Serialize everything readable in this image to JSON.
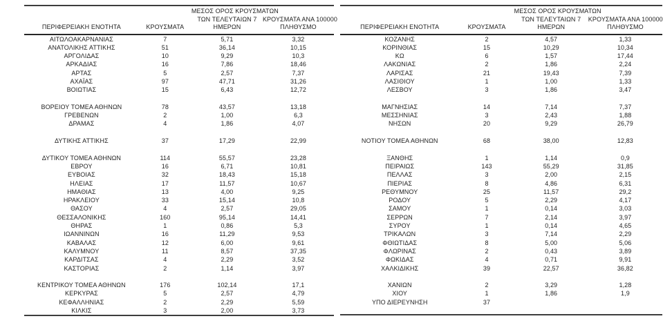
{
  "page": {
    "background_color": "#ffffff",
    "text_color": "#1f1f1f",
    "border_color": "#3d3d3d"
  },
  "headers": {
    "region": "ΠΕΡΙΦΕΡΕΙΑΚΗ ΕΝΟΤΗΤΑ",
    "cases": "ΚΡΟΥΣΜΑΤΑ",
    "avg7_line1": "ΜΕΣΟΣ ΟΡΟΣ ΚΡΟΥΣΜΑΤΩΝ",
    "avg7_line2": "ΤΩΝ ΤΕΛΕΥΤΑΙΩΝ 7",
    "avg7_line3": "ΗΜΕΡΩΝ",
    "per100k_line1": "ΚΡΟΥΣΜΑΤΑ ΑΝΑ 100000",
    "per100k_line2": "ΠΛΗΘΥΣΜΟ"
  },
  "left_table": {
    "rows": [
      {
        "region": "ΑΙΤΩΛΟΑΚΑΡΝΑΝΙΑΣ",
        "cases": "7",
        "avg7": "5,71",
        "per100k": "3,32"
      },
      {
        "region": "ΑΝΑΤΟΛΙΚΗΣ ΑΤΤΙΚΗΣ",
        "cases": "51",
        "avg7": "36,14",
        "per100k": "10,15"
      },
      {
        "region": "ΑΡΓΟΛΙΔΑΣ",
        "cases": "10",
        "avg7": "9,29",
        "per100k": "10,3"
      },
      {
        "region": "ΑΡΚΑΔΙΑΣ",
        "cases": "16",
        "avg7": "7,86",
        "per100k": "18,46"
      },
      {
        "region": "ΑΡΤΑΣ",
        "cases": "5",
        "avg7": "2,57",
        "per100k": "7,37"
      },
      {
        "region": "ΑΧΑΪΑΣ",
        "cases": "97",
        "avg7": "47,71",
        "per100k": "31,26"
      },
      {
        "region": "ΒΟΙΩΤΙΑΣ",
        "cases": "15",
        "avg7": "6,43",
        "per100k": "12,72"
      },
      {
        "region": "",
        "cases": "",
        "avg7": "",
        "per100k": ""
      },
      {
        "region": "ΒΟΡΕΙΟΥ ΤΟΜΕΑ ΑΘΗΝΩΝ",
        "cases": "78",
        "avg7": "43,57",
        "per100k": "13,18"
      },
      {
        "region": "ΓΡΕΒΕΝΩΝ",
        "cases": "2",
        "avg7": "1,00",
        "per100k": "6,3"
      },
      {
        "region": "ΔΡΑΜΑΣ",
        "cases": "4",
        "avg7": "1,86",
        "per100k": "4,07"
      },
      {
        "region": "",
        "cases": "",
        "avg7": "",
        "per100k": ""
      },
      {
        "region": "ΔΥΤΙΚΗΣ ΑΤΤΙΚΗΣ",
        "cases": "37",
        "avg7": "17,29",
        "per100k": "22,99"
      },
      {
        "region": "",
        "cases": "",
        "avg7": "",
        "per100k": ""
      },
      {
        "region": "ΔΥΤΙΚΟΥ ΤΟΜΕΑ ΑΘΗΝΩΝ",
        "cases": "114",
        "avg7": "55,57",
        "per100k": "23,28"
      },
      {
        "region": "ΕΒΡΟΥ",
        "cases": "16",
        "avg7": "6,71",
        "per100k": "10,81"
      },
      {
        "region": "ΕΥΒΟΙΑΣ",
        "cases": "32",
        "avg7": "18,43",
        "per100k": "15,18"
      },
      {
        "region": "ΗΛΕΙΑΣ",
        "cases": "17",
        "avg7": "11,57",
        "per100k": "10,67"
      },
      {
        "region": "ΗΜΑΘΙΑΣ",
        "cases": "13",
        "avg7": "4,00",
        "per100k": "9,25"
      },
      {
        "region": "ΗΡΑΚΛΕΙΟΥ",
        "cases": "33",
        "avg7": "15,14",
        "per100k": "10,8"
      },
      {
        "region": "ΘΑΣΟΥ",
        "cases": "4",
        "avg7": "2,57",
        "per100k": "29,05"
      },
      {
        "region": "ΘΕΣΣΑΛΟΝΙΚΗΣ",
        "cases": "160",
        "avg7": "95,14",
        "per100k": "14,41"
      },
      {
        "region": "ΘΗΡΑΣ",
        "cases": "1",
        "avg7": "0,86",
        "per100k": "5,3"
      },
      {
        "region": "ΙΩΑΝΝΙΝΩΝ",
        "cases": "16",
        "avg7": "11,29",
        "per100k": "9,53"
      },
      {
        "region": "ΚΑΒΑΛΑΣ",
        "cases": "12",
        "avg7": "6,00",
        "per100k": "9,61"
      },
      {
        "region": "ΚΑΛΥΜΝΟΥ",
        "cases": "11",
        "avg7": "8,57",
        "per100k": "37,35"
      },
      {
        "region": "ΚΑΡΔΙΤΣΑΣ",
        "cases": "4",
        "avg7": "2,29",
        "per100k": "3,52"
      },
      {
        "region": "ΚΑΣΤΟΡΙΑΣ",
        "cases": "2",
        "avg7": "1,14",
        "per100k": "3,97"
      },
      {
        "region": "",
        "cases": "",
        "avg7": "",
        "per100k": ""
      },
      {
        "region": "ΚΕΝΤΡΙΚΟΥ ΤΟΜΕΑ ΑΘΗΝΩΝ",
        "cases": "176",
        "avg7": "102,14",
        "per100k": "17,1"
      },
      {
        "region": "ΚΕΡΚΥΡΑΣ",
        "cases": "5",
        "avg7": "2,57",
        "per100k": "4,79"
      },
      {
        "region": "ΚΕΦΑΛΛΗΝΙΑΣ",
        "cases": "2",
        "avg7": "2,29",
        "per100k": "5,59"
      },
      {
        "region": "ΚΙΛΚΙΣ",
        "cases": "3",
        "avg7": "2,00",
        "per100k": "3,73"
      }
    ]
  },
  "right_table": {
    "rows": [
      {
        "region": "ΚΟΖΑΝΗΣ",
        "cases": "2",
        "avg7": "4,57",
        "per100k": "1,33"
      },
      {
        "region": "ΚΟΡΙΝΘΙΑΣ",
        "cases": "15",
        "avg7": "10,29",
        "per100k": "10,34"
      },
      {
        "region": "ΚΩ",
        "cases": "6",
        "avg7": "1,57",
        "per100k": "17,44"
      },
      {
        "region": "ΛΑΚΩΝΙΑΣ",
        "cases": "2",
        "avg7": "1,86",
        "per100k": "2,24"
      },
      {
        "region": "ΛΑΡΙΣΑΣ",
        "cases": "21",
        "avg7": "19,43",
        "per100k": "7,39"
      },
      {
        "region": "ΛΑΣΙΘΙΟΥ",
        "cases": "1",
        "avg7": "1,00",
        "per100k": "1,33"
      },
      {
        "region": "ΛΕΣΒΟΥ",
        "cases": "3",
        "avg7": "1,86",
        "per100k": "3,47"
      },
      {
        "region": "",
        "cases": "",
        "avg7": "",
        "per100k": ""
      },
      {
        "region": "ΜΑΓΝΗΣΙΑΣ",
        "cases": "14",
        "avg7": "7,14",
        "per100k": "7,37"
      },
      {
        "region": "ΜΕΣΣΗΝΙΑΣ",
        "cases": "3",
        "avg7": "2,43",
        "per100k": "1,88"
      },
      {
        "region": "ΝΗΣΩΝ",
        "cases": "20",
        "avg7": "9,29",
        "per100k": "26,79"
      },
      {
        "region": "",
        "cases": "",
        "avg7": "",
        "per100k": ""
      },
      {
        "region": "ΝΟΤΙΟΥ ΤΟΜΕΑ ΑΘΗΝΩΝ",
        "cases": "68",
        "avg7": "38,00",
        "per100k": "12,83"
      },
      {
        "region": "",
        "cases": "",
        "avg7": "",
        "per100k": ""
      },
      {
        "region": "ΞΑΝΘΗΣ",
        "cases": "1",
        "avg7": "1,14",
        "per100k": "0,9"
      },
      {
        "region": "ΠΕΙΡΑΙΩΣ",
        "cases": "143",
        "avg7": "55,29",
        "per100k": "31,85"
      },
      {
        "region": "ΠΕΛΛΑΣ",
        "cases": "3",
        "avg7": "2,00",
        "per100k": "2,15"
      },
      {
        "region": "ΠΙΕΡΙΑΣ",
        "cases": "8",
        "avg7": "4,86",
        "per100k": "6,31"
      },
      {
        "region": "ΡΕΘΥΜΝΟΥ",
        "cases": "25",
        "avg7": "11,57",
        "per100k": "29,2"
      },
      {
        "region": "ΡΟΔΟΥ",
        "cases": "5",
        "avg7": "2,29",
        "per100k": "4,17"
      },
      {
        "region": "ΣΑΜΟΥ",
        "cases": "1",
        "avg7": "0,14",
        "per100k": "3,03"
      },
      {
        "region": "ΣΕΡΡΩΝ",
        "cases": "7",
        "avg7": "2,14",
        "per100k": "3,97"
      },
      {
        "region": "ΣΥΡΟΥ",
        "cases": "1",
        "avg7": "0,14",
        "per100k": "4,65"
      },
      {
        "region": "ΤΡΙΚΑΛΩΝ",
        "cases": "3",
        "avg7": "7,14",
        "per100k": "2,29"
      },
      {
        "region": "ΦΘΙΩΤΙΔΑΣ",
        "cases": "8",
        "avg7": "5,00",
        "per100k": "5,06"
      },
      {
        "region": "ΦΛΩΡΙΝΑΣ",
        "cases": "2",
        "avg7": "0,43",
        "per100k": "3,89"
      },
      {
        "region": "ΦΩΚΙΔΑΣ",
        "cases": "4",
        "avg7": "0,71",
        "per100k": "9,91"
      },
      {
        "region": "ΧΑΛΚΙΔΙΚΗΣ",
        "cases": "39",
        "avg7": "22,57",
        "per100k": "36,82"
      },
      {
        "region": "",
        "cases": "",
        "avg7": "",
        "per100k": ""
      },
      {
        "region": "ΧΑΝΙΩΝ",
        "cases": "2",
        "avg7": "3,29",
        "per100k": "1,28"
      },
      {
        "region": "ΧΙΟΥ",
        "cases": "1",
        "avg7": "1,86",
        "per100k": "1,9"
      },
      {
        "region": "ΥΠΟ ΔΙΕΡΕΥΝΗΣΗ",
        "cases": "37",
        "avg7": "",
        "per100k": ""
      },
      {
        "region": "",
        "cases": "",
        "avg7": "",
        "per100k": ""
      }
    ]
  }
}
